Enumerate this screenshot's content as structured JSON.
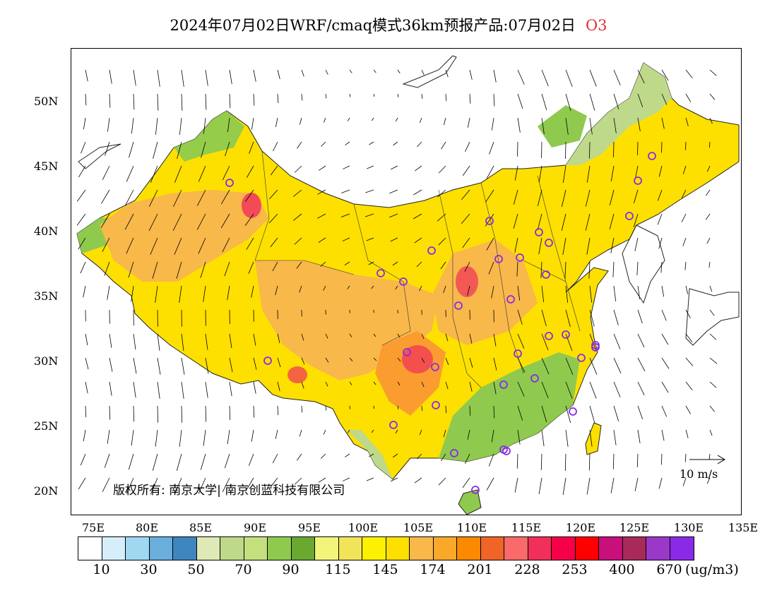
{
  "title": {
    "main": "2024年07月02日WRF/cmaq模式36km预报产品:07月02日",
    "species": "O3"
  },
  "axes": {
    "lat_labels": [
      "50N",
      "45N",
      "40N",
      "35N",
      "30N",
      "25N",
      "20N"
    ],
    "lon_labels": [
      "75E",
      "80E",
      "85E",
      "90E",
      "95E",
      "100E",
      "105E",
      "110E",
      "115E",
      "120E",
      "125E",
      "130E",
      "135E"
    ]
  },
  "copyright": "版权所有: 南京大学| 南京创蓝科技有限公司",
  "wind_reference": "10 m/s",
  "colorbar": {
    "colors": [
      "#ffffff",
      "#d6eefa",
      "#a0d8f2",
      "#6aaedc",
      "#3f86c0",
      "#dfe9b8",
      "#bfd98a",
      "#c4e07e",
      "#8fca4e",
      "#6aa830",
      "#f2f57a",
      "#f2e45a",
      "#fbf100",
      "#fde000",
      "#f8b84a",
      "#f9a82a",
      "#fb8a00",
      "#f06428",
      "#fa6a6a",
      "#f0305a",
      "#f6004a",
      "#ff0000",
      "#c8107a",
      "#a82a5a",
      "#9a38c8",
      "#8a2ae8"
    ],
    "labels": [
      "10",
      "30",
      "50",
      "70",
      "90",
      "115",
      "145",
      "174",
      "201",
      "228",
      "253",
      "400",
      "670"
    ],
    "unit": "(ug/m3)"
  },
  "map_colors": {
    "orange": "#f8b84a",
    "deep_orange": "#fb9c30",
    "yellow": "#fde000",
    "bright_yellow": "#fbf100",
    "light_yellow": "#f2f57a",
    "green": "#bfd98a",
    "dark_green": "#8fca4e",
    "red": "#f0305a",
    "station_marker": "#8a2ae8"
  }
}
